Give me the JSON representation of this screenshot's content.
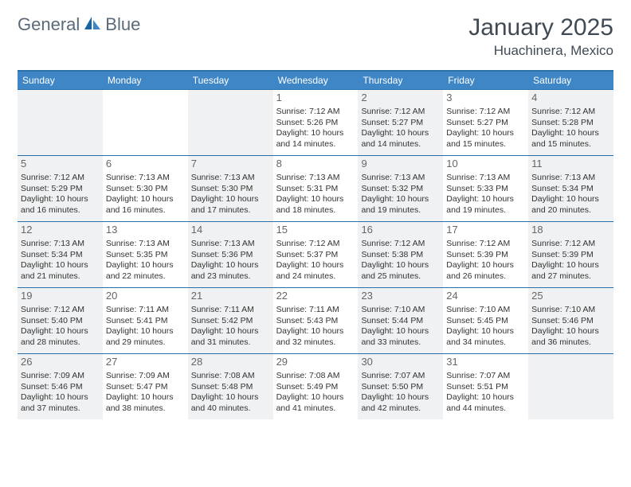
{
  "logo": {
    "text_general": "General",
    "text_blue": "Blue"
  },
  "header": {
    "month": "January 2025",
    "location": "Huachinera, Mexico"
  },
  "colors": {
    "header_bar": "#3f86c6",
    "rule": "#2b6fa8",
    "shade": "#eff1f2",
    "text": "#333333",
    "title": "#404a54"
  },
  "dow": [
    "Sunday",
    "Monday",
    "Tuesday",
    "Wednesday",
    "Thursday",
    "Friday",
    "Saturday"
  ],
  "weeks": [
    [
      null,
      null,
      null,
      {
        "n": "1",
        "sr": "7:12 AM",
        "ss": "5:26 PM",
        "dl": "10 hours and 14 minutes."
      },
      {
        "n": "2",
        "sr": "7:12 AM",
        "ss": "5:27 PM",
        "dl": "10 hours and 14 minutes."
      },
      {
        "n": "3",
        "sr": "7:12 AM",
        "ss": "5:27 PM",
        "dl": "10 hours and 15 minutes."
      },
      {
        "n": "4",
        "sr": "7:12 AM",
        "ss": "5:28 PM",
        "dl": "10 hours and 15 minutes."
      }
    ],
    [
      {
        "n": "5",
        "sr": "7:12 AM",
        "ss": "5:29 PM",
        "dl": "10 hours and 16 minutes."
      },
      {
        "n": "6",
        "sr": "7:13 AM",
        "ss": "5:30 PM",
        "dl": "10 hours and 16 minutes."
      },
      {
        "n": "7",
        "sr": "7:13 AM",
        "ss": "5:30 PM",
        "dl": "10 hours and 17 minutes."
      },
      {
        "n": "8",
        "sr": "7:13 AM",
        "ss": "5:31 PM",
        "dl": "10 hours and 18 minutes."
      },
      {
        "n": "9",
        "sr": "7:13 AM",
        "ss": "5:32 PM",
        "dl": "10 hours and 19 minutes."
      },
      {
        "n": "10",
        "sr": "7:13 AM",
        "ss": "5:33 PM",
        "dl": "10 hours and 19 minutes."
      },
      {
        "n": "11",
        "sr": "7:13 AM",
        "ss": "5:34 PM",
        "dl": "10 hours and 20 minutes."
      }
    ],
    [
      {
        "n": "12",
        "sr": "7:13 AM",
        "ss": "5:34 PM",
        "dl": "10 hours and 21 minutes."
      },
      {
        "n": "13",
        "sr": "7:13 AM",
        "ss": "5:35 PM",
        "dl": "10 hours and 22 minutes."
      },
      {
        "n": "14",
        "sr": "7:13 AM",
        "ss": "5:36 PM",
        "dl": "10 hours and 23 minutes."
      },
      {
        "n": "15",
        "sr": "7:12 AM",
        "ss": "5:37 PM",
        "dl": "10 hours and 24 minutes."
      },
      {
        "n": "16",
        "sr": "7:12 AM",
        "ss": "5:38 PM",
        "dl": "10 hours and 25 minutes."
      },
      {
        "n": "17",
        "sr": "7:12 AM",
        "ss": "5:39 PM",
        "dl": "10 hours and 26 minutes."
      },
      {
        "n": "18",
        "sr": "7:12 AM",
        "ss": "5:39 PM",
        "dl": "10 hours and 27 minutes."
      }
    ],
    [
      {
        "n": "19",
        "sr": "7:12 AM",
        "ss": "5:40 PM",
        "dl": "10 hours and 28 minutes."
      },
      {
        "n": "20",
        "sr": "7:11 AM",
        "ss": "5:41 PM",
        "dl": "10 hours and 29 minutes."
      },
      {
        "n": "21",
        "sr": "7:11 AM",
        "ss": "5:42 PM",
        "dl": "10 hours and 31 minutes."
      },
      {
        "n": "22",
        "sr": "7:11 AM",
        "ss": "5:43 PM",
        "dl": "10 hours and 32 minutes."
      },
      {
        "n": "23",
        "sr": "7:10 AM",
        "ss": "5:44 PM",
        "dl": "10 hours and 33 minutes."
      },
      {
        "n": "24",
        "sr": "7:10 AM",
        "ss": "5:45 PM",
        "dl": "10 hours and 34 minutes."
      },
      {
        "n": "25",
        "sr": "7:10 AM",
        "ss": "5:46 PM",
        "dl": "10 hours and 36 minutes."
      }
    ],
    [
      {
        "n": "26",
        "sr": "7:09 AM",
        "ss": "5:46 PM",
        "dl": "10 hours and 37 minutes."
      },
      {
        "n": "27",
        "sr": "7:09 AM",
        "ss": "5:47 PM",
        "dl": "10 hours and 38 minutes."
      },
      {
        "n": "28",
        "sr": "7:08 AM",
        "ss": "5:48 PM",
        "dl": "10 hours and 40 minutes."
      },
      {
        "n": "29",
        "sr": "7:08 AM",
        "ss": "5:49 PM",
        "dl": "10 hours and 41 minutes."
      },
      {
        "n": "30",
        "sr": "7:07 AM",
        "ss": "5:50 PM",
        "dl": "10 hours and 42 minutes."
      },
      {
        "n": "31",
        "sr": "7:07 AM",
        "ss": "5:51 PM",
        "dl": "10 hours and 44 minutes."
      },
      null
    ]
  ],
  "labels": {
    "sunrise": "Sunrise: ",
    "sunset": "Sunset: ",
    "daylight": "Daylight: "
  }
}
